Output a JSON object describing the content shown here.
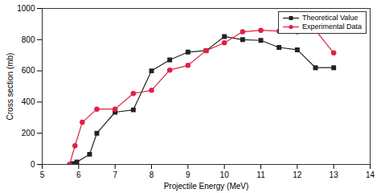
{
  "chart_data": {
    "type": "line",
    "xlabel": "Projectile Energy (MeV)",
    "ylabel": "Cross section (mb)",
    "xlim": [
      5,
      14
    ],
    "ylim": [
      0,
      1000
    ],
    "xticks": [
      5,
      6,
      7,
      8,
      9,
      10,
      11,
      12,
      13,
      14
    ],
    "yticks": [
      0,
      200,
      400,
      600,
      800,
      1000
    ],
    "legend": "upper right",
    "series": [
      {
        "name": "Theoretical Value",
        "color": "#222222",
        "marker": "square",
        "x": [
          5.85,
          5.95,
          6.3,
          6.5,
          7.0,
          7.5,
          8.0,
          8.5,
          9.0,
          9.5,
          10.0,
          10.5,
          11.0,
          11.5,
          12.0,
          12.5,
          13.0
        ],
        "values": [
          5,
          15,
          65,
          200,
          335,
          350,
          600,
          670,
          720,
          730,
          820,
          800,
          795,
          750,
          735,
          620,
          620
        ]
      },
      {
        "name": "Experimental Data",
        "color": "#dd2244",
        "marker": "circle",
        "x": [
          5.75,
          5.9,
          6.1,
          6.5,
          7.0,
          7.5,
          8.0,
          8.5,
          9.0,
          9.5,
          10.0,
          10.5,
          11.0,
          11.5,
          12.0,
          12.5,
          13.0
        ],
        "values": [
          0,
          120,
          270,
          355,
          355,
          455,
          475,
          605,
          635,
          730,
          780,
          850,
          860,
          855,
          850,
          860,
          715
        ]
      }
    ]
  }
}
